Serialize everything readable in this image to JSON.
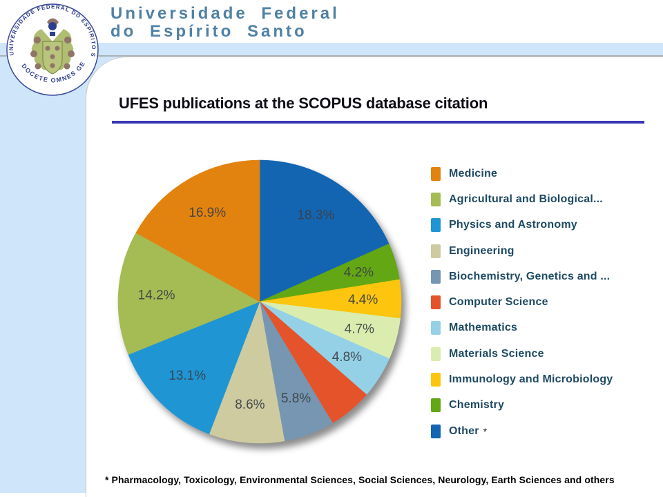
{
  "header": {
    "university_line1": "Universidade Federal",
    "university_line2": "do Espírito Santo"
  },
  "logo": {
    "ring_text_top": "UNIVERSIDADE FEDERAL DO ESPÍRITO SANTO",
    "ring_text_bottom": "DOCETE OMNES GENTES"
  },
  "slide": {
    "title": "UFES publications at the SCOPUS database citation",
    "footnote": "* Pharmacology, Toxicology, Environmental Sciences, Social Sciences, Neurology, Earth Sciences and others"
  },
  "colors": {
    "band_blue": "#CFE5F9",
    "title_underline": "#3A35B5",
    "header_text": "#4F81A4",
    "legend_text": "#1E4A63",
    "pie_label_text": "#3A4146",
    "crest_blue": "#2E3E8E"
  },
  "chart_data": {
    "type": "pie",
    "title": "UFES publications at the SCOPUS database citation",
    "legend_position": "right",
    "start_angle_deg": -90,
    "direction": "clockwise",
    "slices": [
      {
        "label": "Other *",
        "value": 18.3,
        "display": "18.3%",
        "color": "#1365B2",
        "label_visible": true
      },
      {
        "label": "Chemistry",
        "value": 4.2,
        "display": "4.2%",
        "color": "#64A714",
        "label_visible": true
      },
      {
        "label": "Immunology and Microbiology",
        "value": 4.4,
        "display": "4.4%",
        "color": "#FDC50D",
        "label_visible": true
      },
      {
        "label": "Materials Science",
        "value": 4.7,
        "display": "4.7%",
        "color": "#DBEDAE",
        "label_visible": true
      },
      {
        "label": "Mathematics",
        "value": 4.8,
        "display": "4.8%",
        "color": "#94D1E6",
        "label_visible": true
      },
      {
        "label": "Computer Science",
        "value": 5.0,
        "display": "",
        "color": "#E5532A",
        "label_visible": false
      },
      {
        "label": "Biochemistry, Genetics and ...",
        "value": 5.8,
        "display": "5.8%",
        "color": "#7796B2",
        "label_visible": true
      },
      {
        "label": "Engineering",
        "value": 8.6,
        "display": "8.6%",
        "color": "#CFCBA1",
        "label_visible": true
      },
      {
        "label": "Physics and Astronomy",
        "value": 13.1,
        "display": "13.1%",
        "color": "#1F95D4",
        "label_visible": true
      },
      {
        "label": "Agricultural and Biological...",
        "value": 14.2,
        "display": "14.2%",
        "color": "#A5BB54",
        "label_visible": true
      },
      {
        "label": "Medicine",
        "value": 16.9,
        "display": "16.9%",
        "color": "#E2830F",
        "label_visible": true
      }
    ],
    "legend": [
      {
        "label": "Medicine",
        "color": "#E2830F",
        "suffix": ""
      },
      {
        "label": "Agricultural and Biological...",
        "color": "#A5BB54",
        "suffix": ""
      },
      {
        "label": "Physics and Astronomy",
        "color": "#1F95D4",
        "suffix": ""
      },
      {
        "label": "Engineering",
        "color": "#CFCBA1",
        "suffix": ""
      },
      {
        "label": "Biochemistry, Genetics and ...",
        "color": "#7796B2",
        "suffix": ""
      },
      {
        "label": "Computer Science",
        "color": "#E5532A",
        "suffix": ""
      },
      {
        "label": "Mathematics",
        "color": "#94D1E6",
        "suffix": ""
      },
      {
        "label": "Materials Science",
        "color": "#DBEDAE",
        "suffix": ""
      },
      {
        "label": "Immunology and Microbiology",
        "color": "#FDC50D",
        "suffix": ""
      },
      {
        "label": "Chemistry",
        "color": "#64A714",
        "suffix": ""
      },
      {
        "label": "Other",
        "color": "#1365B2",
        "suffix": "*"
      }
    ]
  }
}
